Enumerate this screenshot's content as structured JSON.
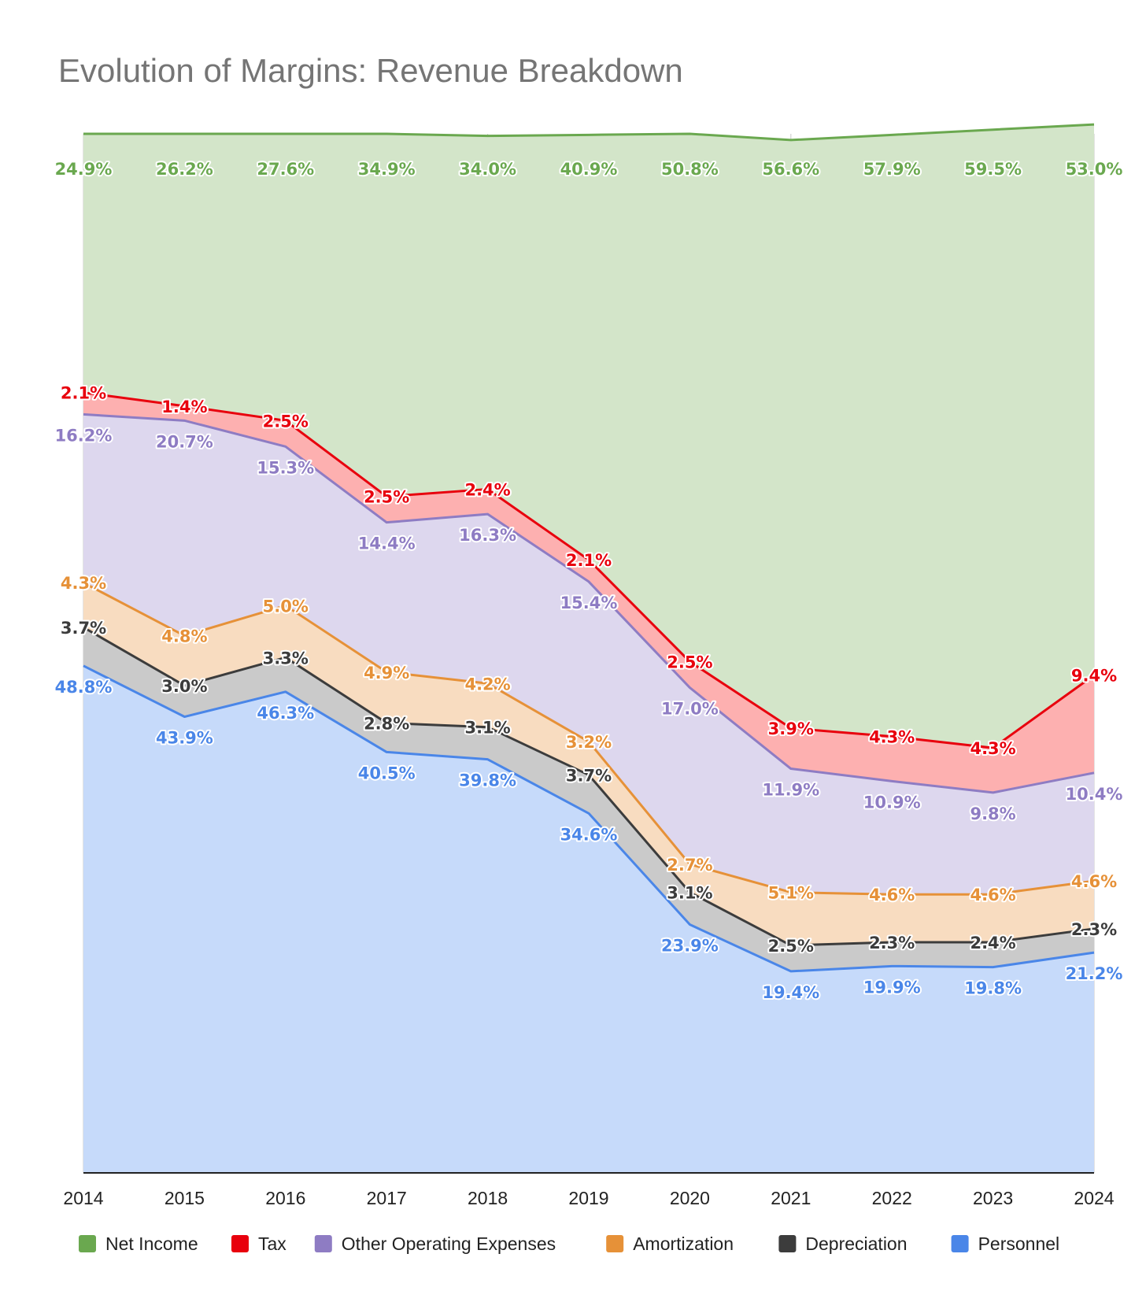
{
  "chart_data": {
    "type": "area",
    "stacked": true,
    "title": "Evolution of Margins: Revenue Breakdown",
    "xlabel": "",
    "ylabel": "",
    "ylim": [
      0,
      100
    ],
    "grid": true,
    "legend_position": "bottom",
    "categories": [
      "2014",
      "2015",
      "2016",
      "2017",
      "2018",
      "2019",
      "2020",
      "2021",
      "2022",
      "2023",
      "2024"
    ],
    "series": [
      {
        "name": "Personnel",
        "color": "#4a86e8",
        "fill": "#c6dafa",
        "values": [
          48.8,
          43.9,
          46.3,
          40.5,
          39.8,
          34.6,
          23.9,
          19.4,
          19.9,
          19.8,
          21.2
        ],
        "labels": [
          "48.8%",
          "43.9%",
          "46.3%",
          "40.5%",
          "39.8%",
          "34.6%",
          "23.9%",
          "19.4%",
          "19.9%",
          "19.8%",
          "21.2%"
        ]
      },
      {
        "name": "Depreciation",
        "color": "#3c3c3c",
        "fill": "#cacaca",
        "values": [
          3.7,
          3.0,
          3.3,
          2.8,
          3.1,
          3.7,
          3.1,
          2.5,
          2.3,
          2.4,
          2.3
        ],
        "labels": [
          "3.7%",
          "3.0%",
          "3.3%",
          "2.8%",
          "3.1%",
          "3.7%",
          "3.1%",
          "2.5%",
          "2.3%",
          "2.4%",
          "2.3%"
        ]
      },
      {
        "name": "Amortization",
        "color": "#e69138",
        "fill": "#f8dcc0",
        "values": [
          4.3,
          4.8,
          5.0,
          4.9,
          4.2,
          3.2,
          2.7,
          5.1,
          4.6,
          4.6,
          4.6
        ],
        "labels": [
          "4.3%",
          "4.8%",
          "5.0%",
          "4.9%",
          "4.2%",
          "3.2%",
          "2.7%",
          "5.1%",
          "4.6%",
          "4.6%",
          "4.6%"
        ]
      },
      {
        "name": "Other Operating Expenses",
        "color": "#8e7cc3",
        "fill": "#ddd7ee",
        "values": [
          16.2,
          20.7,
          15.3,
          14.4,
          16.3,
          15.4,
          17.0,
          11.9,
          10.9,
          9.8,
          10.4
        ],
        "labels": [
          "16.2%",
          "20.7%",
          "15.3%",
          "14.4%",
          "16.3%",
          "15.4%",
          "17.0%",
          "11.9%",
          "10.9%",
          "9.8%",
          "10.4%"
        ]
      },
      {
        "name": "Tax",
        "color": "#e8000d",
        "fill": "#fdb0b0",
        "values": [
          2.1,
          1.4,
          2.5,
          2.5,
          2.4,
          2.1,
          2.5,
          3.9,
          4.3,
          4.3,
          9.4
        ],
        "labels": [
          "2.1%",
          "1.4%",
          "2.5%",
          "2.5%",
          "2.4%",
          "2.1%",
          "2.5%",
          "3.9%",
          "4.3%",
          "4.3%",
          "9.4%"
        ]
      },
      {
        "name": "Net Income",
        "color": "#6aa84f",
        "fill": "#d3e5c9",
        "values": [
          24.9,
          26.2,
          27.6,
          34.9,
          34.0,
          40.9,
          50.8,
          56.6,
          57.9,
          59.5,
          53.0
        ],
        "labels": [
          "24.9%",
          "26.2%",
          "27.6%",
          "34.9%",
          "34.0%",
          "40.9%",
          "50.8%",
          "56.6%",
          "57.9%",
          "59.5%",
          "53.0%"
        ]
      }
    ],
    "legend_order": [
      "Net Income",
      "Tax",
      "Other Operating Expenses",
      "Amortization",
      "Depreciation",
      "Personnel"
    ]
  }
}
